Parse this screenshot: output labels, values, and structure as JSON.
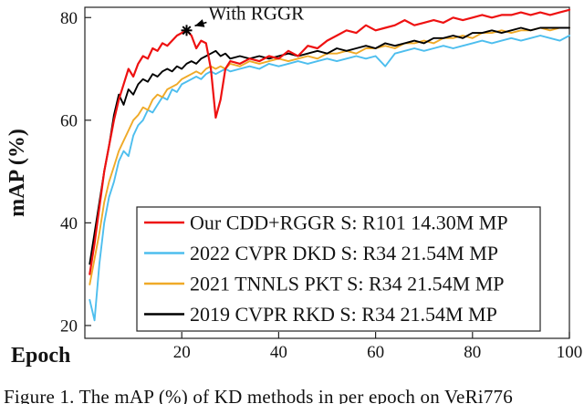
{
  "figure": {
    "caption": "Figure 1. The mAP (%) of KD methods in per epoch on VeRi776"
  },
  "chart_data": {
    "type": "line",
    "title": "",
    "xlabel": "Epoch",
    "ylabel": "mAP (%)",
    "xlim": [
      0,
      100
    ],
    "ylim": [
      17.5,
      82
    ],
    "xticks": [
      20,
      40,
      60,
      80,
      100
    ],
    "yticks": [
      20,
      40,
      60,
      80
    ],
    "grid": false,
    "legend_position": "inside-bottom-right",
    "annotation": {
      "text": "With RGGR",
      "marker": {
        "x": 21,
        "y": 77.5
      },
      "label": {
        "x": 25.5,
        "y": 79.6
      }
    },
    "series": [
      {
        "name": "Our CDD+RGGR S: R101 14.30M MP",
        "color": "#ee1111",
        "x": [
          1,
          2,
          3,
          4,
          5,
          6,
          7,
          8,
          9,
          10,
          11,
          12,
          13,
          14,
          15,
          16,
          17,
          18,
          19,
          20,
          21,
          22,
          23,
          24,
          25,
          26,
          27,
          28,
          29,
          30,
          32,
          34,
          36,
          38,
          40,
          42,
          44,
          46,
          48,
          50,
          52,
          54,
          56,
          58,
          60,
          62,
          64,
          66,
          68,
          70,
          72,
          74,
          76,
          78,
          80,
          82,
          84,
          86,
          88,
          90,
          92,
          94,
          96,
          98,
          100
        ],
        "y": [
          30,
          36,
          43,
          50,
          55,
          60,
          64,
          67,
          70,
          68.5,
          71,
          72.5,
          72,
          74,
          73.5,
          75,
          74.5,
          75.5,
          76.5,
          77,
          77.5,
          76.5,
          74,
          75.5,
          75,
          70,
          60.5,
          64,
          70,
          71.5,
          71,
          72,
          71.5,
          72.5,
          72,
          73.5,
          72.5,
          74.5,
          74,
          75.5,
          76.5,
          77.5,
          77,
          78.5,
          77.5,
          78,
          78.5,
          79.5,
          78.5,
          79,
          79.5,
          79,
          80,
          79.5,
          80,
          80.5,
          80,
          80.5,
          80.5,
          81,
          80.5,
          81,
          80.5,
          81,
          81.5
        ]
      },
      {
        "name": "2022 CVPR DKD  S: R34  21.54M MP",
        "color": "#4dbeee",
        "x": [
          1,
          2,
          3,
          4,
          5,
          6,
          7,
          8,
          9,
          10,
          11,
          12,
          13,
          14,
          15,
          16,
          17,
          18,
          19,
          20,
          21,
          22,
          23,
          24,
          25,
          26,
          27,
          28,
          29,
          30,
          32,
          34,
          36,
          38,
          40,
          42,
          44,
          46,
          48,
          50,
          52,
          54,
          56,
          58,
          60,
          62,
          64,
          66,
          68,
          70,
          72,
          74,
          76,
          78,
          80,
          82,
          84,
          86,
          88,
          90,
          92,
          94,
          96,
          98,
          100
        ],
        "y": [
          25,
          21,
          32,
          40,
          45,
          48,
          52,
          54,
          53,
          57,
          59,
          60,
          62,
          61.5,
          63,
          64.5,
          64,
          66,
          65.5,
          67,
          67.5,
          68,
          68.5,
          68,
          69,
          69.5,
          69,
          69.5,
          70,
          69.5,
          70,
          70.5,
          70,
          71,
          70.5,
          71,
          71.5,
          71,
          71.5,
          72,
          71.5,
          72,
          72.5,
          72,
          72.5,
          70.5,
          73,
          73.5,
          74,
          73.5,
          74,
          74.5,
          74,
          74.5,
          75,
          75.5,
          75,
          75.5,
          76,
          75.5,
          76,
          76.5,
          76,
          75.5,
          76.5
        ]
      },
      {
        "name": "2021 TNNLS PKT S: R34 21.54M MP",
        "color": "#efaa28",
        "x": [
          1,
          2,
          3,
          4,
          5,
          6,
          7,
          8,
          9,
          10,
          11,
          12,
          13,
          14,
          15,
          16,
          17,
          18,
          19,
          20,
          21,
          22,
          23,
          24,
          25,
          26,
          27,
          28,
          29,
          30,
          32,
          34,
          36,
          38,
          40,
          42,
          44,
          46,
          48,
          50,
          52,
          54,
          56,
          58,
          60,
          62,
          64,
          66,
          68,
          70,
          72,
          74,
          76,
          78,
          80,
          82,
          84,
          86,
          88,
          90,
          92,
          94,
          96,
          98,
          100
        ],
        "y": [
          28,
          33,
          38,
          44,
          48,
          51,
          54,
          56,
          58,
          60,
          61,
          62.5,
          62,
          64,
          65,
          64.5,
          66,
          66.5,
          67,
          68,
          68.5,
          69,
          69.5,
          69,
          70,
          70.5,
          70,
          70.5,
          70,
          71,
          70.5,
          71.5,
          71,
          71.5,
          72,
          71.5,
          72,
          72.5,
          72,
          73,
          73,
          73.5,
          73,
          74,
          74,
          74.5,
          74,
          75,
          75,
          75.5,
          75,
          76,
          76,
          76.5,
          76,
          77,
          77,
          77.5,
          77,
          77.5,
          77.5,
          78,
          77.5,
          78,
          78
        ]
      },
      {
        "name": "2019 CVPR RKD  S: R34  21.54M MP",
        "color": "#000000",
        "x": [
          1,
          2,
          3,
          4,
          5,
          6,
          7,
          8,
          9,
          10,
          11,
          12,
          13,
          14,
          15,
          16,
          17,
          18,
          19,
          20,
          21,
          22,
          23,
          24,
          25,
          26,
          27,
          28,
          29,
          30,
          32,
          34,
          36,
          38,
          40,
          42,
          44,
          46,
          48,
          50,
          52,
          54,
          56,
          58,
          60,
          62,
          64,
          66,
          68,
          70,
          72,
          74,
          76,
          78,
          80,
          82,
          84,
          86,
          88,
          90,
          92,
          94,
          96,
          98,
          100
        ],
        "y": [
          32,
          38,
          44,
          50,
          55,
          61,
          65,
          63,
          66,
          65,
          67,
          68,
          67.5,
          69,
          68.5,
          69.5,
          70,
          69.5,
          70.5,
          70,
          71,
          71.5,
          71,
          72,
          72.5,
          73,
          73.5,
          72.5,
          73,
          72,
          72.5,
          72,
          72.5,
          72,
          72.5,
          73,
          72.5,
          73,
          73.5,
          73,
          74,
          73.5,
          74,
          74.5,
          74,
          75,
          74.5,
          75,
          75.5,
          75,
          76,
          76,
          76.5,
          76,
          77,
          77,
          77.5,
          77,
          77.5,
          78,
          77.5,
          78,
          78,
          78,
          78
        ]
      }
    ]
  }
}
